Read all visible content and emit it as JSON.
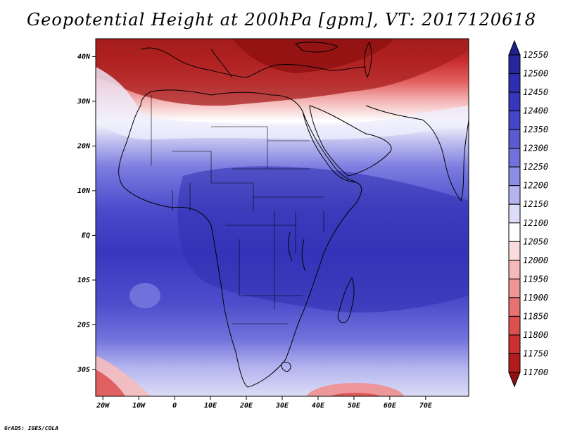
{
  "title": "Geopotential Height at 200hPa [gpm], VT: 2017120618",
  "footer": "GrADS: IGES/COLA",
  "map": {
    "lat_labels": [
      "40N",
      "30N",
      "20N",
      "10N",
      "EQ",
      "10S",
      "20S",
      "30S"
    ],
    "lon_labels": [
      "20W",
      "10W",
      "0",
      "10E",
      "20E",
      "30E",
      "40E",
      "50E",
      "60E",
      "70E"
    ]
  },
  "colorbar": {
    "levels": [
      "12550",
      "12500",
      "12450",
      "12400",
      "12350",
      "12300",
      "12250",
      "12200",
      "12150",
      "12100",
      "12050",
      "12000",
      "11950",
      "11900",
      "11850",
      "11800",
      "11750",
      "11700"
    ],
    "colors": [
      "#1e1e8c",
      "#26269e",
      "#2e2eb0",
      "#3737bd",
      "#4646c8",
      "#5a5ad2",
      "#7171dc",
      "#8d8de6",
      "#b4b4ef",
      "#dcdcf7",
      "#ffffff",
      "#fbdcdc",
      "#f6b9b9",
      "#f09696",
      "#e87272",
      "#dd5050",
      "#cc3030",
      "#b21c1c",
      "#8e1010"
    ]
  }
}
